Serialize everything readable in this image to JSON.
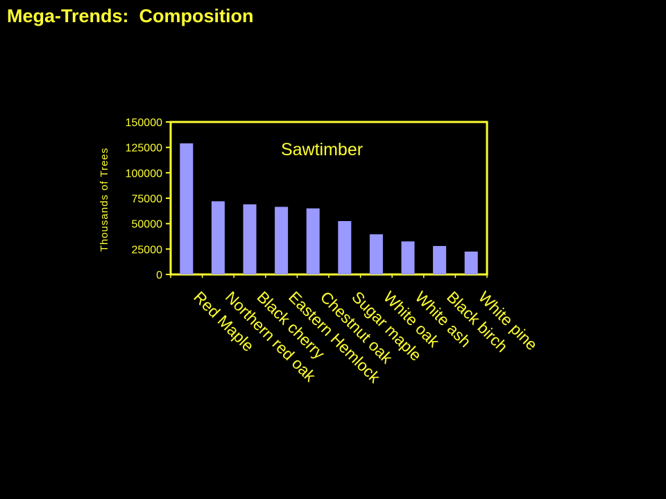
{
  "slide": {
    "title": "Mega-Trends:  Composition"
  },
  "colors": {
    "background": "#000000",
    "text": "#ffff33",
    "axis": "#ffff33",
    "bar": "#9999ff"
  },
  "chart_data": {
    "type": "bar",
    "title": "Sawtimber",
    "xlabel": "",
    "ylabel": "Thousands of Trees",
    "ylim": [
      0,
      150000
    ],
    "yticks": [
      0,
      25000,
      50000,
      75000,
      100000,
      125000,
      150000
    ],
    "grid": false,
    "legend": "none",
    "categories": [
      "Red Maple",
      "Northern red oak",
      "Black cherry",
      "Eastern Hemlock",
      "Chestnut oak",
      "Sugar maple",
      "White oak",
      "White ash",
      "Black birch",
      "White pine"
    ],
    "values": [
      129000,
      72000,
      69000,
      66500,
      65000,
      52500,
      39500,
      32500,
      28000,
      22500
    ]
  }
}
